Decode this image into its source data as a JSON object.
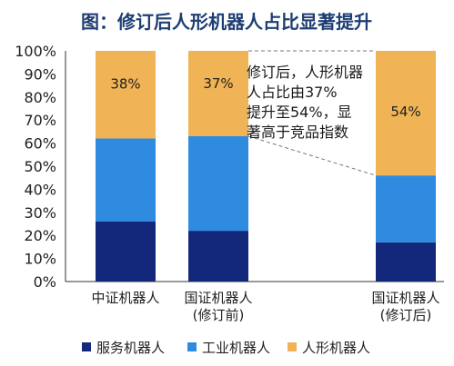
{
  "title": "图：修订后人形机器人占比显著提升",
  "colors": {
    "title": "#1f3e73",
    "service": "#13287a",
    "industrial": "#2e8be0",
    "humanoid": "#f0b355",
    "annotation_line": "#777777"
  },
  "annotation": {
    "lines": [
      "修订后，人形机器",
      "人占比由37%",
      "提升至54%，显",
      "著高于竞品指数"
    ]
  },
  "chart_data": {
    "type": "bar",
    "stacked": true,
    "title": "图：修订后人形机器人占比显著提升",
    "categories": [
      [
        "中证机器人"
      ],
      [
        "国证机器人",
        "(修订前)"
      ],
      [
        "国证机器人",
        "(修订后)"
      ]
    ],
    "series": [
      {
        "name": "服务机器人",
        "values": [
          26,
          22,
          17
        ]
      },
      {
        "name": "工业机器人",
        "values": [
          36,
          41,
          29
        ]
      },
      {
        "name": "人形机器人",
        "values": [
          38,
          37,
          54
        ]
      }
    ],
    "data_labels": [
      "38%",
      "37%",
      "54%"
    ],
    "y_ticks": [
      "0%",
      "10%",
      "20%",
      "30%",
      "40%",
      "50%",
      "60%",
      "70%",
      "80%",
      "90%",
      "100%"
    ],
    "ylim": [
      0,
      100
    ],
    "grid": false,
    "legend_position": "bottom"
  }
}
